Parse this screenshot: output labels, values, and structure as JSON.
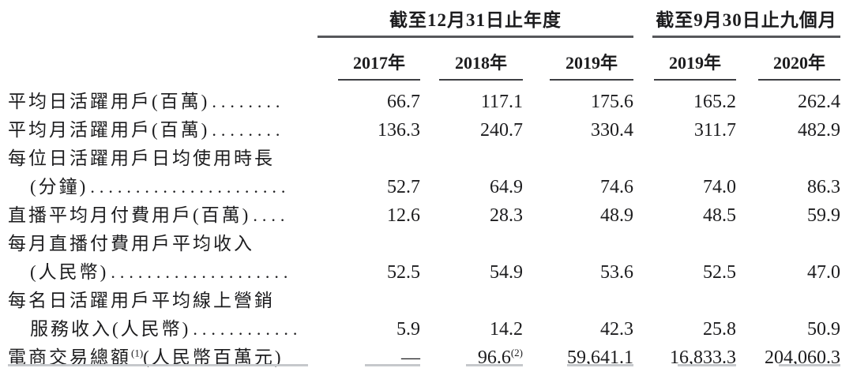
{
  "table": {
    "col_groups": [
      {
        "title": "截至12月31日止年度",
        "span": 3
      },
      {
        "title": "截至9月30日止九個月",
        "span": 2
      }
    ],
    "year_headers": [
      "2017年",
      "2018年",
      "2019年",
      "2019年",
      "2020年"
    ],
    "rows": [
      {
        "lines": [
          {
            "text": "平均日活躍用戶(百萬)",
            "dots": "........"
          }
        ],
        "values": [
          "66.7",
          "117.1",
          "175.6",
          "165.2",
          "262.4"
        ]
      },
      {
        "lines": [
          {
            "text": "平均月活躍用戶(百萬)",
            "dots": "........"
          }
        ],
        "values": [
          "136.3",
          "240.7",
          "330.4",
          "311.7",
          "482.9"
        ]
      },
      {
        "lines": [
          {
            "text": "每位日活躍用戶日均使用時長"
          },
          {
            "text": "(分鐘)",
            "indent": true,
            "dots": "......................"
          }
        ],
        "values": [
          "52.7",
          "64.9",
          "74.6",
          "74.0",
          "86.3"
        ]
      },
      {
        "lines": [
          {
            "text": "直播平均月付費用戶(百萬)",
            "dots": "...."
          }
        ],
        "values": [
          "12.6",
          "28.3",
          "48.9",
          "48.5",
          "59.9"
        ]
      },
      {
        "lines": [
          {
            "text": "每月直播付費用戶平均收入"
          },
          {
            "text": "(人民幣)",
            "indent": true,
            "dots": "...................."
          }
        ],
        "values": [
          "52.5",
          "54.9",
          "53.6",
          "52.5",
          "47.0"
        ]
      },
      {
        "lines": [
          {
            "text": "每名日活躍用戶平均線上營銷"
          },
          {
            "text": "服務收入(人民幣)",
            "indent": true,
            "dots": "............"
          }
        ],
        "values": [
          "5.9",
          "14.2",
          "42.3",
          "25.8",
          "50.9"
        ]
      },
      {
        "lines": [
          {
            "text": "電商交易總額",
            "sup": "(1)",
            "suffix": "(人民幣百萬元)"
          }
        ],
        "values": [
          "—",
          "96.6",
          "59,641.1",
          "16,833.3",
          "204,060.3"
        ],
        "value_sups": [
          "",
          "(2)",
          "",
          "",
          ""
        ]
      }
    ]
  },
  "colors": {
    "text": "#1c1c1e",
    "group_rule": "#56575b",
    "year_rule": "#3e3f43",
    "cutoff_fragment": "#c6c9cc",
    "background": "#ffffff"
  }
}
